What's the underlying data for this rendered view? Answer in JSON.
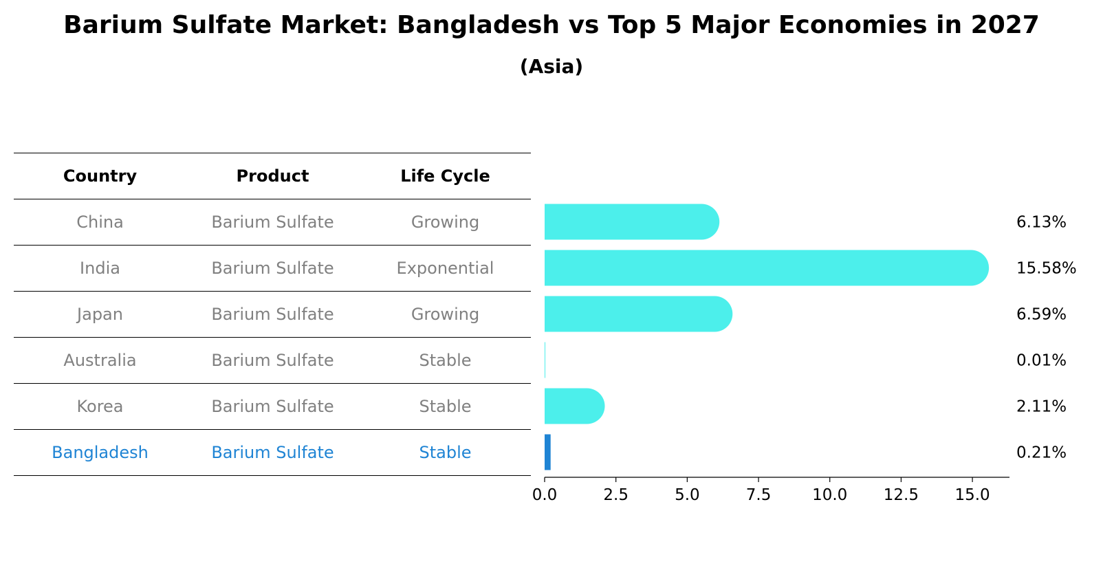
{
  "chart_data": {
    "type": "bar",
    "title": "Barium Sulfate Market: Bangladesh vs Top 5 Major Economies in 2027",
    "subtitle": "(Asia)",
    "table": {
      "columns": [
        "Country",
        "Product",
        "Life Cycle"
      ],
      "rows": [
        [
          "China",
          "Barium Sulfate",
          "Growing"
        ],
        [
          "India",
          "Barium Sulfate",
          "Exponential"
        ],
        [
          "Japan",
          "Barium Sulfate",
          "Growing"
        ],
        [
          "Australia",
          "Barium Sulfate",
          "Stable"
        ],
        [
          "Korea",
          "Barium Sulfate",
          "Stable"
        ],
        [
          "Bangladesh",
          "Barium Sulfate",
          "Stable"
        ]
      ]
    },
    "categories": [
      "China",
      "India",
      "Japan",
      "Australia",
      "Korea",
      "Bangladesh"
    ],
    "values": [
      6.13,
      15.58,
      6.59,
      0.01,
      2.11,
      0.21
    ],
    "value_labels": [
      "6.13%",
      "15.58%",
      "6.59%",
      "0.01%",
      "2.11%",
      "0.21%"
    ],
    "highlight": "Bangladesh",
    "xlim": [
      0,
      16.3
    ],
    "xticks": [
      0.0,
      2.5,
      5.0,
      7.5,
      10.0,
      12.5,
      15.0
    ],
    "xtick_labels": [
      "0.0",
      "2.5",
      "5.0",
      "7.5",
      "10.0",
      "12.5",
      "15.0"
    ],
    "colors": {
      "bar": "#4cefeb",
      "highlight_bar": "#1f84d4",
      "table_text": "#808080",
      "highlight_text": "#1f84d4"
    }
  }
}
